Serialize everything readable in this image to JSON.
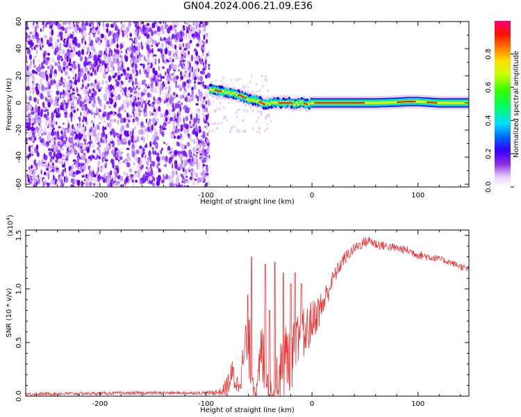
{
  "title": "GN04.2024.006.21.09.E36",
  "chart_data": [
    {
      "type": "heatmap",
      "title": "GN04.2024.006.21.09.E36",
      "xlabel": "Height of straight line (km)",
      "ylabel": "Frequency (Hz)",
      "xlim": [
        -270,
        148
      ],
      "ylim": [
        -62,
        60
      ],
      "xticks": [
        -200,
        -100,
        0,
        100
      ],
      "xtick_labels": [
        "-200",
        "-100",
        "0",
        "100"
      ],
      "yticks": [
        -60,
        -40,
        -20,
        0,
        20,
        40,
        60
      ],
      "ytick_labels": [
        "-60",
        "-40",
        "-20",
        "0",
        "20",
        "40",
        "60"
      ],
      "colorbar": {
        "label": "Normalized spectral amplitude",
        "range": [
          0,
          1
        ],
        "ticks": [
          0.0,
          0.2,
          0.4,
          0.6,
          0.8
        ],
        "tick_labels": [
          "0.0",
          "0.2",
          "0.4",
          "0.6",
          "0.8"
        ],
        "colormap": "hsv-rainbow"
      },
      "noise_region_x": [
        -270,
        -97
      ],
      "signal_track": {
        "x": [
          -97,
          -90,
          -80,
          -70,
          -60,
          -50,
          -45,
          -40,
          -30,
          -20,
          -15,
          -10,
          -5,
          0,
          20,
          40,
          60,
          80,
          90,
          100,
          120,
          148
        ],
        "freq": [
          10,
          9,
          8,
          6,
          3,
          1,
          -1,
          0,
          0,
          0,
          -1,
          0,
          -1,
          0,
          0,
          0,
          0,
          0.5,
          1,
          1,
          0,
          0
        ],
        "amplitude": [
          0.55,
          0.6,
          0.5,
          0.45,
          0.5,
          0.55,
          0.6,
          0.65,
          0.7,
          0.7,
          0.65,
          0.7,
          0.75,
          0.9,
          0.95,
          0.9,
          0.7,
          0.75,
          0.85,
          0.8,
          0.6,
          0.5
        ]
      }
    },
    {
      "type": "line",
      "xlabel": "Height of straight line (km)",
      "ylabel": "SNR (10 * v/v)",
      "y_scale_label": "(x10",
      "y_scale_exponent": "4",
      "y_scale_close": ")",
      "xlim": [
        -270,
        148
      ],
      "ylim": [
        0,
        1.55
      ],
      "xticks": [
        -200,
        -100,
        0,
        100
      ],
      "xtick_labels": [
        "-200",
        "-100",
        "0",
        "100"
      ],
      "yticks": [
        0.0,
        0.5,
        1.0,
        1.5
      ],
      "ytick_labels": [
        "0.0",
        "0.5",
        "1.0",
        "1.5"
      ],
      "color": "#ee3333",
      "envelope": {
        "x": [
          -270,
          -150,
          -100,
          -85,
          -80,
          -75,
          -70,
          -65,
          -62,
          -60,
          -58,
          -55,
          -52,
          -50,
          -48,
          -45,
          -40,
          -35,
          -30,
          -25,
          -20,
          -15,
          -10,
          -5,
          0,
          10,
          20,
          30,
          40,
          50,
          55,
          60,
          70,
          80,
          90,
          100,
          110,
          120,
          130,
          140,
          148
        ],
        "base": [
          0.02,
          0.03,
          0.03,
          0.04,
          0.1,
          0.2,
          0.1,
          0.3,
          0.5,
          0.6,
          0.3,
          0.1,
          0.05,
          0.2,
          0.4,
          0.3,
          0.1,
          0.1,
          0.2,
          0.35,
          0.4,
          0.45,
          0.5,
          0.6,
          0.7,
          0.85,
          1.1,
          1.28,
          1.38,
          1.44,
          1.45,
          1.42,
          1.4,
          1.38,
          1.36,
          1.32,
          1.3,
          1.28,
          1.25,
          1.21,
          1.18
        ],
        "noise": [
          0.015,
          0.015,
          0.015,
          0.04,
          0.1,
          0.15,
          0.1,
          0.2,
          0.35,
          0.4,
          0.25,
          0.1,
          0.08,
          0.2,
          0.35,
          0.3,
          0.15,
          0.2,
          0.3,
          0.35,
          0.35,
          0.3,
          0.3,
          0.25,
          0.2,
          0.15,
          0.08,
          0.06,
          0.05,
          0.05,
          0.05,
          0.05,
          0.04,
          0.04,
          0.04,
          0.04,
          0.04,
          0.03,
          0.03,
          0.03,
          0.03
        ],
        "spikes": [
          {
            "x": -57,
            "y": 1.3
          },
          {
            "x": -44,
            "y": 1.23
          },
          {
            "x": -40,
            "y": 0.8
          },
          {
            "x": -35,
            "y": 1.25
          },
          {
            "x": -27,
            "y": 1.15
          },
          {
            "x": -20,
            "y": 1.05
          },
          {
            "x": -16,
            "y": 1.15
          },
          {
            "x": -10,
            "y": 1.05
          }
        ]
      }
    }
  ]
}
